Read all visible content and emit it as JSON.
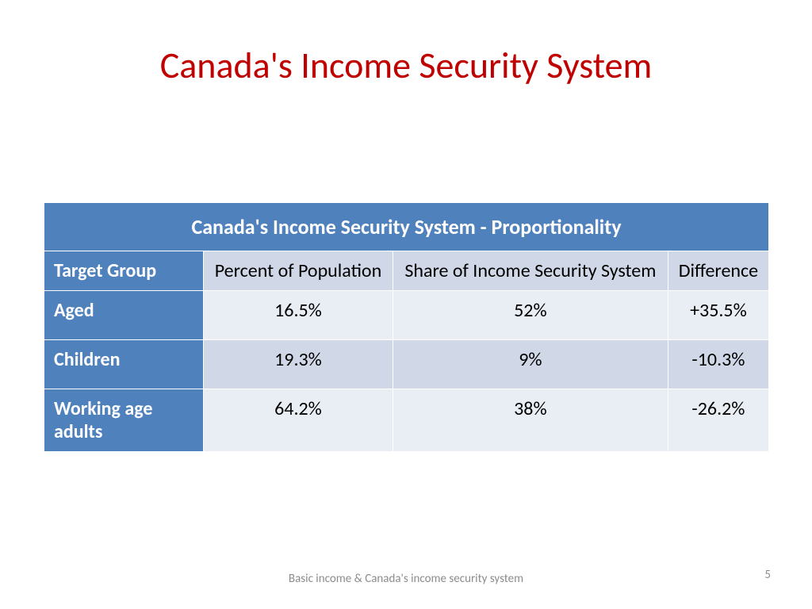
{
  "title": {
    "text": "Canada's Income Security System",
    "color": "#c00000",
    "fontsize": 46
  },
  "table": {
    "caption": "Canada's Income Security System  - Proportionality",
    "columns": [
      "Target Group",
      "Percent of Population",
      "Share of Income Security System",
      "Difference"
    ],
    "rows": [
      [
        "Aged",
        "16.5%",
        "52%",
        "+35.5%"
      ],
      [
        "Children",
        "19.3%",
        "9%",
        "-10.3%"
      ],
      [
        "Working age adults",
        "64.2%",
        "38%",
        "-26.2%"
      ]
    ],
    "colors": {
      "header_bg": "#4f81bd",
      "first_col_bg": "#4f81bd",
      "row_alt_a": "#e9edf4",
      "row_alt_b": "#d0d8e8",
      "header_text": "#ffffff",
      "cell_text": "#000000",
      "border": "#ffffff"
    },
    "fontsize": 24,
    "caption_fontsize": 26
  },
  "footer": {
    "text": "Basic income & Canada's income security system",
    "page": "5",
    "color": "#8c8c8c",
    "fontsize": 15
  }
}
